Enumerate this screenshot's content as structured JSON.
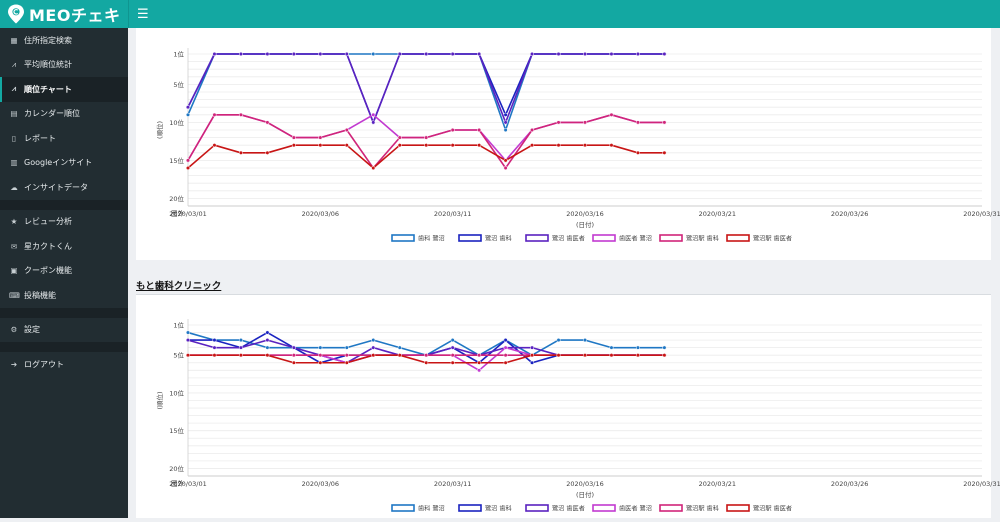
{
  "app": {
    "brand": "MEOチェキ"
  },
  "sidebar": {
    "items": [
      {
        "label": "住所指定検索",
        "icon": "map-icon"
      },
      {
        "label": "平均順位統計",
        "icon": "line-chart-icon"
      },
      {
        "label": "順位チャート",
        "icon": "area-chart-icon",
        "active": true
      },
      {
        "label": "カレンダー順位",
        "icon": "calendar-icon"
      },
      {
        "label": "レポート",
        "icon": "document-icon"
      },
      {
        "label": "Googleインサイト",
        "icon": "bar-chart-icon"
      },
      {
        "label": "インサイトデータ",
        "icon": "cloud-download-icon"
      },
      {
        "label": "レビュー分析",
        "icon": "star-icon"
      },
      {
        "label": "星カクトくん",
        "icon": "envelope-icon"
      },
      {
        "label": "クーポン機能",
        "icon": "gift-icon"
      },
      {
        "label": "投稿機能",
        "icon": "keyboard-icon"
      },
      {
        "label": "設定",
        "icon": "gear-icon"
      },
      {
        "label": "ログアウト",
        "icon": "sign-out-icon"
      }
    ]
  },
  "section2": {
    "title": "もと歯科クリニック"
  },
  "chart_common": {
    "y_ticks": [
      "1位",
      "5位",
      "10位",
      "15位",
      "20位"
    ],
    "y_out_label": "圏外",
    "ylabel": "(順位)",
    "xlabel": "(日付)",
    "x_ticks": [
      "2020/03/01",
      "2020/03/06",
      "2020/03/11",
      "2020/03/16",
      "2020/03/21",
      "2020/03/26",
      "2020/03/31"
    ]
  },
  "chart_data": [
    {
      "type": "line",
      "x": [
        "03/01",
        "03/02",
        "03/03",
        "03/04",
        "03/05",
        "03/06",
        "03/07",
        "03/08",
        "03/09",
        "03/10",
        "03/11",
        "03/12",
        "03/13",
        "03/14",
        "03/15",
        "03/16",
        "03/17",
        "03/18",
        "03/19"
      ],
      "x_range": [
        "2020/03/01",
        "2020/03/31"
      ],
      "ylim": [
        1,
        21
      ],
      "legend_position": "bottom",
      "series": [
        {
          "name": "歯科 鷺沼",
          "color": "#1f77c4",
          "values": [
            9,
            1,
            1,
            1,
            1,
            1,
            1,
            1,
            1,
            1,
            1,
            1,
            11,
            1,
            1,
            1,
            1,
            1,
            1
          ]
        },
        {
          "name": "鷺沼 歯科",
          "color": "#1a23c0",
          "values": [
            8,
            1,
            1,
            1,
            1,
            1,
            1,
            10,
            1,
            1,
            1,
            1,
            9,
            1,
            1,
            1,
            1,
            1,
            1
          ]
        },
        {
          "name": "鷺沼 歯医者",
          "color": "#5a22c0",
          "values": [
            8,
            1,
            1,
            1,
            1,
            1,
            1,
            10,
            1,
            1,
            1,
            1,
            10,
            1,
            1,
            1,
            1,
            1,
            1
          ]
        },
        {
          "name": "歯医者 鷺沼",
          "color": "#c23ad0",
          "values": [
            15,
            9,
            9,
            10,
            12,
            12,
            11,
            9,
            12,
            12,
            11,
            11,
            15,
            11,
            10,
            10,
            9,
            10,
            10
          ]
        },
        {
          "name": "鷺沼駅 歯科",
          "color": "#d0257a",
          "values": [
            15,
            9,
            9,
            10,
            12,
            12,
            11,
            16,
            12,
            12,
            11,
            11,
            16,
            11,
            10,
            10,
            9,
            10,
            10
          ]
        },
        {
          "name": "鷺沼駅 歯医者",
          "color": "#c81515",
          "values": [
            16,
            13,
            14,
            14,
            13,
            13,
            13,
            16,
            13,
            13,
            13,
            13,
            15,
            13,
            13,
            13,
            13,
            14,
            14
          ]
        }
      ]
    },
    {
      "type": "line",
      "title": "もと歯科クリニック",
      "x": [
        "03/01",
        "03/02",
        "03/03",
        "03/04",
        "03/05",
        "03/06",
        "03/07",
        "03/08",
        "03/09",
        "03/10",
        "03/11",
        "03/12",
        "03/13",
        "03/14",
        "03/15",
        "03/16",
        "03/17",
        "03/18",
        "03/19"
      ],
      "x_range": [
        "2020/03/01",
        "2020/03/31"
      ],
      "ylim": [
        1,
        21
      ],
      "legend_position": "bottom",
      "series": [
        {
          "name": "歯科 鷺沼",
          "color": "#1f77c4",
          "values": [
            2,
            3,
            3,
            4,
            4,
            4,
            4,
            3,
            4,
            5,
            3,
            5,
            3,
            5,
            3,
            3,
            4,
            4,
            4
          ]
        },
        {
          "name": "鷺沼 歯科",
          "color": "#1a23c0",
          "values": [
            3,
            3,
            4,
            2,
            4,
            6,
            5,
            5,
            5,
            5,
            4,
            6,
            3,
            6,
            5,
            5,
            5,
            5,
            5
          ]
        },
        {
          "name": "鷺沼 歯医者",
          "color": "#5a22c0",
          "values": [
            3,
            4,
            4,
            3,
            4,
            5,
            6,
            4,
            5,
            5,
            4,
            5,
            4,
            4,
            5,
            5,
            5,
            5,
            5
          ]
        },
        {
          "name": "歯医者 鷺沼",
          "color": "#c23ad0",
          "values": [
            5,
            5,
            5,
            5,
            5,
            5,
            6,
            5,
            5,
            5,
            5,
            7,
            4,
            5,
            5,
            5,
            5,
            5,
            5
          ]
        },
        {
          "name": "鷺沼駅 歯科",
          "color": "#d0257a",
          "values": [
            5,
            5,
            5,
            5,
            5,
            5,
            5,
            5,
            5,
            5,
            5,
            5,
            5,
            5,
            5,
            5,
            5,
            5,
            5
          ]
        },
        {
          "name": "鷺沼駅 歯医者",
          "color": "#c81515",
          "values": [
            5,
            5,
            5,
            5,
            6,
            6,
            6,
            5,
            5,
            6,
            6,
            6,
            6,
            5,
            5,
            5,
            5,
            5,
            5
          ]
        }
      ]
    }
  ]
}
